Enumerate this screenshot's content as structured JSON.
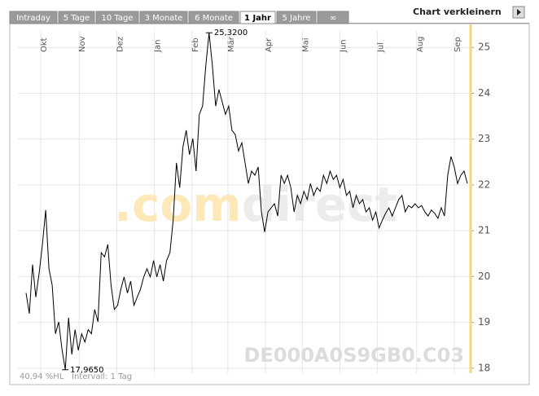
{
  "tabs": [
    {
      "label": "Intraday",
      "active": false
    },
    {
      "label": "5 Tage",
      "active": false
    },
    {
      "label": "10 Tage",
      "active": false
    },
    {
      "label": "3 Monate",
      "active": false
    },
    {
      "label": "6 Monate",
      "active": false
    },
    {
      "label": "1 Jahr",
      "active": true
    },
    {
      "label": "5 Jahre",
      "active": false
    },
    {
      "label": "∞",
      "active": false
    }
  ],
  "shrink_button": "Chart verkleinern",
  "chart_data": {
    "type": "line",
    "color": "#000000",
    "watermark": [
      ".com",
      "direct"
    ],
    "symbol": "DE000A0S9GB0.C03",
    "footer": [
      "40,94 %HL",
      "Intervall: 1 Tag"
    ],
    "annotations": {
      "max": "25,3200",
      "min": "17,9650"
    },
    "values": [
      19.64,
      19.19,
      20.26,
      19.55,
      20.08,
      20.7,
      21.45,
      20.17,
      19.81,
      18.75,
      19.01,
      18.4,
      17.965,
      19.1,
      18.3,
      18.84,
      18.39,
      18.75,
      18.57,
      18.84,
      18.75,
      19.28,
      19.01,
      20.52,
      20.43,
      20.7,
      19.81,
      19.28,
      19.37,
      19.72,
      19.99,
      19.64,
      19.9,
      19.37,
      19.55,
      19.72,
      19.99,
      20.17,
      19.99,
      20.35,
      19.99,
      20.26,
      19.9,
      20.35,
      20.52,
      21.23,
      22.48,
      21.94,
      22.83,
      23.19,
      22.66,
      23.01,
      22.3,
      23.54,
      23.72,
      24.61,
      25.32,
      24.61,
      23.72,
      24.08,
      23.81,
      23.54,
      23.72,
      23.19,
      23.1,
      22.74,
      22.92,
      22.48,
      22.03,
      22.3,
      22.21,
      22.39,
      21.41,
      20.97,
      21.41,
      21.5,
      21.59,
      21.32,
      22.21,
      22.03,
      22.21,
      21.94,
      21.41,
      21.77,
      21.59,
      21.86,
      21.68,
      22.03,
      21.77,
      21.94,
      21.86,
      22.21,
      22.03,
      22.3,
      22.12,
      22.21,
      21.94,
      22.12,
      21.77,
      21.86,
      21.5,
      21.77,
      21.59,
      21.68,
      21.41,
      21.5,
      21.23,
      21.41,
      21.06,
      21.23,
      21.38,
      21.5,
      21.32,
      21.5,
      21.68,
      21.77,
      21.41,
      21.55,
      21.5,
      21.59,
      21.5,
      21.55,
      21.41,
      21.32,
      21.45,
      21.38,
      21.27,
      21.5,
      21.32,
      22.21,
      22.62,
      22.39,
      22.03,
      22.21,
      22.3,
      22.03
    ],
    "xlim": [
      0,
      135
    ],
    "xticks": [
      {
        "value": 4.5,
        "label": "Okt"
      },
      {
        "value": 16.25,
        "label": "Nov"
      },
      {
        "value": 27.75,
        "label": "Dez"
      },
      {
        "value": 39.25,
        "label": "Jan"
      },
      {
        "value": 50.75,
        "label": "Feb"
      },
      {
        "value": 61.75,
        "label": "Mär"
      },
      {
        "value": 73.25,
        "label": "Apr"
      },
      {
        "value": 84.5,
        "label": "Mai"
      },
      {
        "value": 96,
        "label": "Jun"
      },
      {
        "value": 107.5,
        "label": "Jul"
      },
      {
        "value": 119.5,
        "label": "Aug"
      },
      {
        "value": 131,
        "label": "Sep"
      }
    ],
    "ylim": [
      17.89,
      25.36
    ],
    "yticks": [
      18,
      19,
      20,
      21,
      22,
      23,
      24,
      25
    ],
    "grid": true
  }
}
